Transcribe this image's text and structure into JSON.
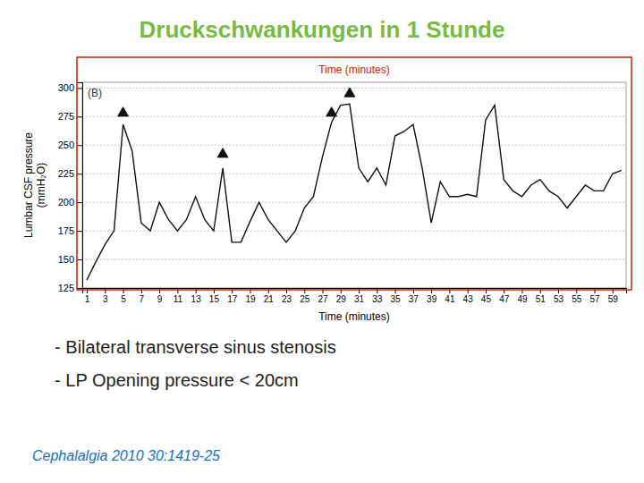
{
  "chart_data": {
    "type": "line",
    "title": "Druckschwankungen in 1 Stunde",
    "x_label": "Time (minutes)",
    "y_label": [
      "Lumbar CSF pressure",
      "(mmH₂O)"
    ],
    "x": [
      1,
      2,
      3,
      4,
      5,
      6,
      7,
      8,
      9,
      10,
      11,
      12,
      13,
      14,
      15,
      16,
      17,
      18,
      19,
      20,
      21,
      22,
      23,
      24,
      25,
      26,
      27,
      28,
      29,
      30,
      31,
      32,
      33,
      34,
      35,
      36,
      37,
      38,
      39,
      40,
      41,
      42,
      43,
      44,
      45,
      46,
      47,
      48,
      49,
      50,
      51,
      52,
      53,
      54,
      55,
      56,
      57,
      58,
      59,
      60
    ],
    "series": [
      {
        "type": "line",
        "color": "#111111",
        "values": [
          132,
          148,
          163,
          175,
          268,
          245,
          182,
          175,
          200,
          185,
          175,
          185,
          205,
          185,
          175,
          230,
          165,
          165,
          183,
          200,
          185,
          175,
          165,
          175,
          195,
          205,
          240,
          270,
          285,
          286,
          230,
          218,
          230,
          215,
          258,
          262,
          268,
          230,
          182,
          218,
          205,
          205,
          207,
          205,
          272,
          285,
          220,
          210,
          205,
          215,
          220,
          210,
          205,
          195,
          205,
          215,
          210,
          210,
          225,
          228
        ]
      },
      {
        "type": "scatter",
        "marker": "triangle",
        "color": "#111111",
        "x": [
          5,
          16,
          28,
          30
        ],
        "values": [
          278,
          242,
          278,
          295
        ]
      }
    ],
    "xlim": [
      0.5,
      60.5
    ],
    "xticks": [
      1,
      3,
      5,
      7,
      9,
      11,
      13,
      15,
      17,
      19,
      21,
      23,
      25,
      27,
      29,
      31,
      33,
      35,
      37,
      39,
      41,
      43,
      45,
      47,
      49,
      51,
      53,
      55,
      57,
      59
    ],
    "ylim": [
      125,
      305
    ],
    "yticks": [
      125,
      150,
      175,
      200,
      225,
      250,
      275,
      300
    ],
    "grid": true,
    "annotations": [
      {
        "text": "(B)",
        "color": "#333333"
      },
      {
        "text": "Time (minutes)",
        "color": "#cc2200"
      },
      {
        "text": "  - Bilateral transverse sinus stenosis",
        "color": "#222222"
      },
      {
        "text": "  - LP Opening pressure < 20cm",
        "color": "#222222"
      },
      {
        "text": "Cephalalgia 2010 30:1419-25",
        "color": "#1a6ebd"
      }
    ]
  }
}
